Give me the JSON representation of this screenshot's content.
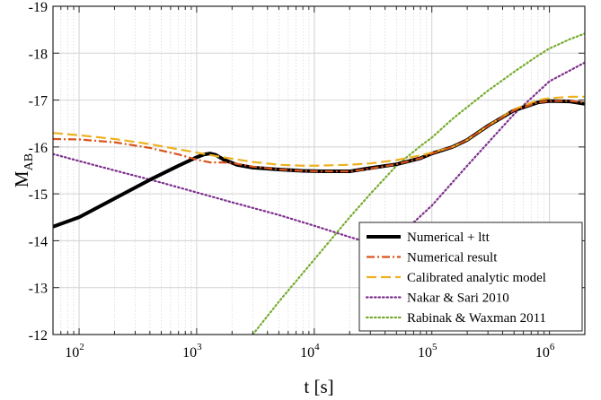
{
  "chart_data": {
    "type": "line",
    "title": "",
    "xlabel": "t [s]",
    "ylabel_main": "M",
    "ylabel_sub": "AB",
    "x_scale": "log",
    "xlim": [
      60,
      2000000
    ],
    "ylim": [
      -12,
      -19
    ],
    "y_inverted": true,
    "x_ticks": [
      {
        "value": 100,
        "base": "10",
        "exp": "2"
      },
      {
        "value": 1000,
        "base": "10",
        "exp": "3"
      },
      {
        "value": 10000,
        "base": "10",
        "exp": "4"
      },
      {
        "value": 100000,
        "base": "10",
        "exp": "5"
      },
      {
        "value": 1000000,
        "base": "10",
        "exp": "6"
      }
    ],
    "y_ticks": [
      {
        "value": -19,
        "label": "-19"
      },
      {
        "value": -18,
        "label": "-18"
      },
      {
        "value": -17,
        "label": "-17"
      },
      {
        "value": -16,
        "label": "-16"
      },
      {
        "value": -15,
        "label": "-15"
      },
      {
        "value": -14,
        "label": "-14"
      },
      {
        "value": -13,
        "label": "-13"
      },
      {
        "value": -12,
        "label": "-12"
      }
    ],
    "grid": true,
    "legend_position": "bottom-right",
    "series": [
      {
        "name": "Numerical + ltt",
        "color": "#000000",
        "style": "solid",
        "x": [
          60,
          100,
          200,
          400,
          700,
          1000,
          1150,
          1300,
          1450,
          1700,
          2200,
          3000,
          5000,
          8000,
          12000,
          20000,
          30000,
          50000,
          80000,
          100000,
          150000,
          200000,
          300000,
          500000,
          800000,
          1000000,
          1500000,
          2000000
        ],
        "y": [
          -14.3,
          -14.5,
          -14.9,
          -15.3,
          -15.6,
          -15.78,
          -15.84,
          -15.86,
          -15.83,
          -15.73,
          -15.62,
          -15.56,
          -15.52,
          -15.49,
          -15.48,
          -15.48,
          -15.55,
          -15.63,
          -15.76,
          -15.86,
          -16.0,
          -16.15,
          -16.45,
          -16.78,
          -16.95,
          -16.98,
          -16.97,
          -16.92
        ]
      },
      {
        "name": "Numerical result",
        "color": "#d95319",
        "style": "dashdot",
        "x": [
          60,
          100,
          200,
          400,
          700,
          1000,
          1300,
          1600,
          2000,
          3000,
          5000,
          8000,
          12000,
          20000,
          30000,
          50000,
          80000,
          100000,
          150000,
          200000,
          300000,
          500000,
          800000,
          1000000,
          1500000,
          2000000
        ],
        "y": [
          -16.17,
          -16.16,
          -16.1,
          -15.98,
          -15.84,
          -15.73,
          -15.67,
          -15.67,
          -15.66,
          -15.58,
          -15.52,
          -15.49,
          -15.48,
          -15.48,
          -15.54,
          -15.63,
          -15.76,
          -15.86,
          -16.0,
          -16.15,
          -16.45,
          -16.78,
          -16.95,
          -16.98,
          -16.98,
          -16.95
        ]
      },
      {
        "name": "Calibrated analytic model",
        "color": "#edb120",
        "style": "dashed",
        "x": [
          60,
          100,
          200,
          400,
          700,
          1000,
          1500,
          2000,
          3000,
          5000,
          8000,
          10000,
          20000,
          30000,
          50000,
          80000,
          100000,
          150000,
          200000,
          300000,
          500000,
          800000,
          1000000,
          1500000,
          2000000
        ],
        "y": [
          -16.3,
          -16.25,
          -16.17,
          -16.06,
          -15.95,
          -15.88,
          -15.8,
          -15.75,
          -15.68,
          -15.62,
          -15.6,
          -15.6,
          -15.62,
          -15.65,
          -15.72,
          -15.82,
          -15.88,
          -16.0,
          -16.15,
          -16.45,
          -16.8,
          -17.0,
          -17.04,
          -17.07,
          -17.07
        ]
      },
      {
        "name": "Nakar & Sari 2010",
        "color": "#7e2f8e",
        "style": "dotted",
        "x": [
          60,
          100,
          200,
          500,
          1000,
          2000,
          5000,
          10000,
          20000,
          30000,
          50000,
          100000,
          200000,
          500000,
          1000000,
          2000000
        ],
        "y": [
          -15.85,
          -15.7,
          -15.5,
          -15.24,
          -15.03,
          -14.82,
          -14.55,
          -14.32,
          -14.08,
          -13.95,
          -14.05,
          -14.75,
          -15.6,
          -16.7,
          -17.4,
          -17.8
        ]
      },
      {
        "name": "Rabinak & Waxman 2011",
        "color": "#77ac30",
        "style": "dotted",
        "x": [
          3000,
          5000,
          10000,
          20000,
          30000,
          50000,
          80000,
          100000,
          150000,
          200000,
          300000,
          500000,
          800000,
          1000000,
          1500000,
          2000000
        ],
        "y": [
          -12.0,
          -12.7,
          -13.6,
          -14.5,
          -15.0,
          -15.6,
          -16.02,
          -16.2,
          -16.6,
          -16.85,
          -17.2,
          -17.6,
          -17.95,
          -18.1,
          -18.3,
          -18.42
        ]
      }
    ]
  }
}
